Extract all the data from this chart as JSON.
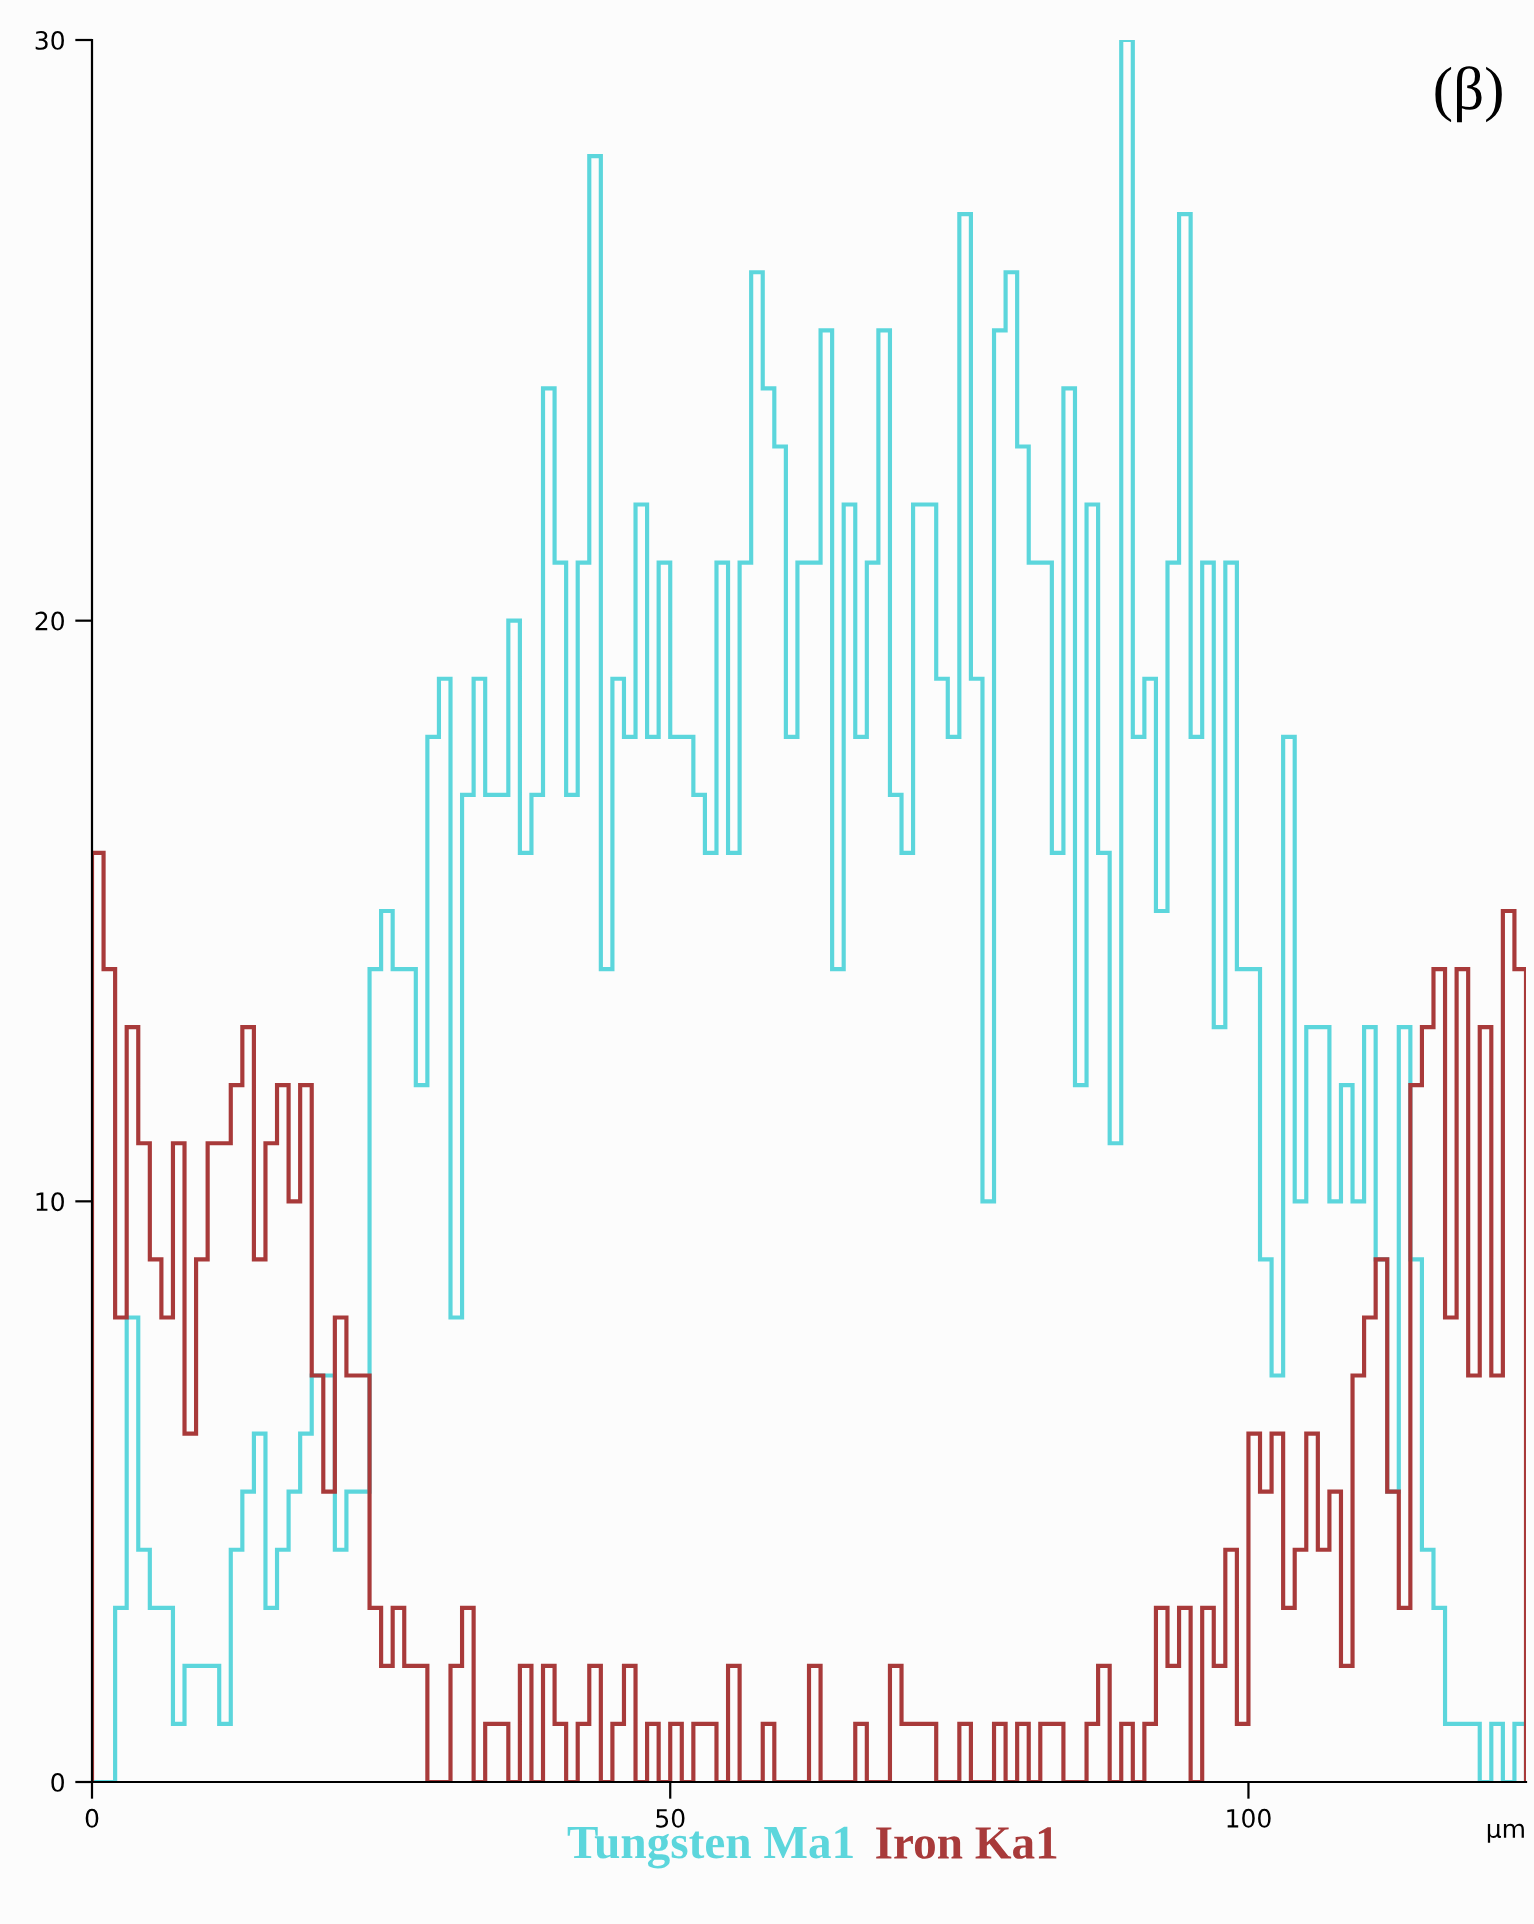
{
  "chart_data": {
    "type": "histogram",
    "xlabel": "µm",
    "annotations": [
      "(β)"
    ],
    "bins": [
      0,
      1,
      2,
      3,
      4,
      5,
      6,
      7,
      8,
      9,
      10,
      11,
      12,
      13,
      14,
      15,
      16,
      17,
      18,
      19,
      20,
      21,
      22,
      23,
      24,
      25,
      26,
      27,
      28,
      29,
      30,
      31,
      32,
      33,
      34,
      35,
      36,
      37,
      38,
      39,
      40,
      41,
      42,
      43,
      44,
      45,
      46,
      47,
      48,
      49,
      50,
      51,
      52,
      53,
      54,
      55,
      56,
      57,
      58,
      59,
      60,
      61,
      62,
      63,
      64,
      65,
      66,
      67,
      68,
      69,
      70,
      71,
      72,
      73,
      74,
      75,
      76,
      77,
      78,
      79,
      80,
      81,
      82,
      83,
      84,
      85,
      86,
      87,
      88,
      89,
      90,
      91,
      92,
      93,
      94,
      95,
      96,
      97,
      98,
      99,
      100,
      101,
      102,
      103,
      104,
      105,
      106,
      107,
      108,
      109,
      110,
      111,
      112,
      113,
      114,
      115,
      116,
      117,
      118,
      119,
      120,
      121,
      122,
      123,
      124
    ],
    "series": [
      {
        "name": "Tungsten Ma1",
        "color": "#5cd6dc",
        "values": [
          0,
          0,
          3,
          8,
          4,
          3,
          3,
          1,
          2,
          2,
          2,
          1,
          4,
          5,
          6,
          3,
          4,
          5,
          6,
          7,
          7,
          4,
          5,
          5,
          14,
          15,
          14,
          14,
          12,
          18,
          19,
          8,
          17,
          19,
          17,
          17,
          20,
          16,
          17,
          24,
          21,
          17,
          21,
          28,
          14,
          19,
          18,
          22,
          18,
          21,
          18,
          18,
          17,
          16,
          21,
          16,
          21,
          26,
          24,
          23,
          18,
          21,
          21,
          25,
          14,
          22,
          18,
          21,
          25,
          17,
          16,
          22,
          22,
          19,
          18,
          27,
          19,
          10,
          25,
          26,
          23,
          21,
          21,
          16,
          24,
          12,
          22,
          16,
          11,
          30,
          18,
          19,
          15,
          21,
          27,
          18,
          21,
          13,
          21,
          14,
          14,
          9,
          7,
          18,
          10,
          13,
          13,
          10,
          12,
          10,
          13,
          9,
          5,
          13,
          9,
          4,
          3,
          1,
          1,
          1,
          0,
          1,
          0,
          1
        ]
      },
      {
        "name": "Iron Ka1",
        "color": "#a83a3a",
        "values": [
          16,
          14,
          8,
          13,
          11,
          9,
          8,
          11,
          6,
          9,
          11,
          11,
          12,
          13,
          9,
          11,
          12,
          10,
          12,
          7,
          5,
          8,
          7,
          7,
          3,
          2,
          3,
          2,
          2,
          0,
          0,
          2,
          3,
          0,
          1,
          1,
          0,
          2,
          0,
          2,
          1,
          0,
          1,
          2,
          0,
          1,
          2,
          0,
          1,
          0,
          1,
          0,
          1,
          1,
          0,
          2,
          0,
          0,
          1,
          0,
          0,
          0,
          2,
          0,
          0,
          0,
          1,
          0,
          0,
          2,
          1,
          1,
          1,
          0,
          0,
          1,
          0,
          0,
          1,
          0,
          1,
          0,
          1,
          1,
          0,
          0,
          1,
          2,
          0,
          1,
          0,
          1,
          3,
          2,
          3,
          0,
          3,
          2,
          4,
          1,
          6,
          5,
          6,
          3,
          4,
          6,
          4,
          5,
          2,
          7,
          8,
          9,
          5,
          3,
          12,
          13,
          14,
          8,
          14,
          7,
          13,
          7,
          15,
          14
        ]
      }
    ],
    "xlim": [
      0,
      124
    ],
    "ylim": [
      0,
      30
    ],
    "xticks": [
      0,
      50,
      100
    ],
    "yticks": [
      0,
      10,
      20,
      30
    ],
    "grid": false,
    "legend": "bottom"
  }
}
